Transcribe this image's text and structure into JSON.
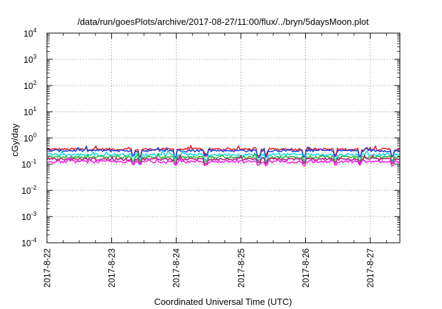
{
  "chart_data": {
    "type": "line",
    "title": "/data/run/goesPlots/archive/2017-08-27/11:00/flux/../bryn/5daysMoon.plot",
    "xlabel": "Coordinated Universal Time (UTC)",
    "ylabel": "cGy/day",
    "yscale": "log",
    "ylim": [
      0.0001,
      10000
    ],
    "y_ticks": [
      {
        "base": "10",
        "exp": "4"
      },
      {
        "base": "10",
        "exp": "3"
      },
      {
        "base": "10",
        "exp": "2"
      },
      {
        "base": "10",
        "exp": "1"
      },
      {
        "base": "10",
        "exp": "0"
      },
      {
        "base": "10",
        "exp": "-1"
      },
      {
        "base": "10",
        "exp": "-2"
      },
      {
        "base": "10",
        "exp": "-3"
      },
      {
        "base": "10",
        "exp": "-4"
      }
    ],
    "x_ticks": [
      "2017-8-22",
      "2017-8-23",
      "2017-8-24",
      "2017-8-25",
      "2017-8-26",
      "2017-8-27"
    ],
    "xlim": [
      "2017-08-22T00:00",
      "2017-08-27T11:00"
    ],
    "grid": true,
    "series": [
      {
        "color": "#e8202a",
        "baseline": 0.37
      },
      {
        "color": "#1f3fd8",
        "baseline": 0.33
      },
      {
        "color": "#19d8e0",
        "baseline": 0.23
      },
      {
        "color": "#2fb83a",
        "baseline": 0.185
      },
      {
        "color": "#b0207a",
        "baseline": 0.155
      },
      {
        "color": "#f020e8",
        "baseline": 0.125
      }
    ]
  }
}
